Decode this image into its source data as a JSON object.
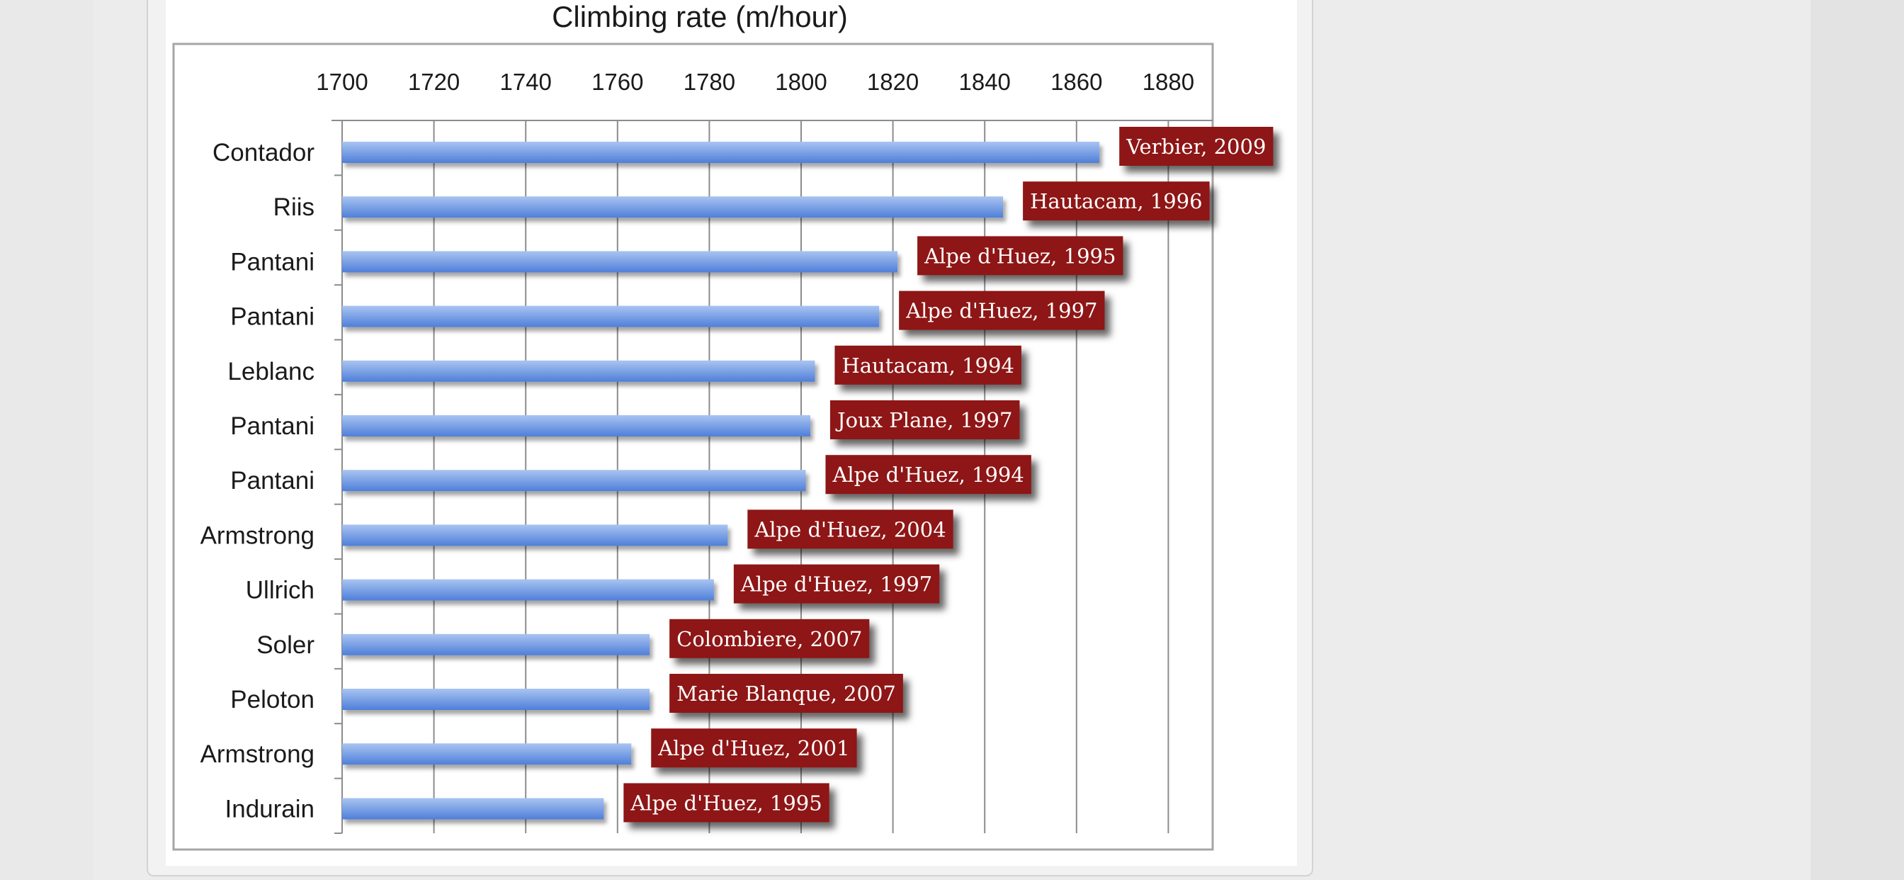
{
  "colors": {
    "bar_top": "#a9c4f1",
    "bar_bottom": "#4f7fd9",
    "annotation_bg": "#8e1714",
    "gridline": "#8c8c8c",
    "plot_border": "#a6a6a6"
  },
  "chart_data": {
    "type": "bar",
    "orientation": "horizontal",
    "title": "Climbing rate (m/hour)",
    "xlim": [
      1700,
      1890
    ],
    "ticks": [
      "1700",
      "1720",
      "1740",
      "1760",
      "1780",
      "1800",
      "1820",
      "1840",
      "1860",
      "1880"
    ],
    "tick_position": "top",
    "grid": true,
    "categories": [
      "Contador",
      "Riis",
      "Pantani",
      "Pantani",
      "Leblanc",
      "Pantani",
      "Pantani",
      "Armstrong",
      "Ullrich",
      "Soler",
      "Peloton",
      "Armstrong",
      "Indurain"
    ],
    "values": [
      1865,
      1844,
      1821,
      1817,
      1803,
      1802,
      1801,
      1784,
      1781,
      1767,
      1767,
      1763,
      1757
    ],
    "annotations": [
      "Verbier, 2009",
      "Hautacam, 1996",
      "Alpe d'Huez, 1995",
      "Alpe d'Huez, 1997",
      "Hautacam, 1994",
      "Joux Plane, 1997",
      "Alpe d'Huez, 1994",
      "Alpe d'Huez, 2004",
      "Alpe d'Huez, 1997",
      "Colombiere, 2007",
      "Marie Blanque, 2007",
      "Alpe d'Huez, 2001",
      "Alpe d'Huez, 1995"
    ]
  }
}
